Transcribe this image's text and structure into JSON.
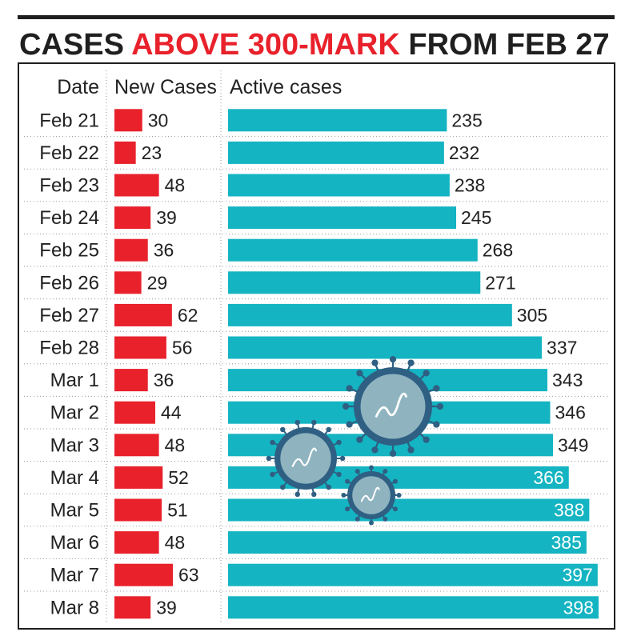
{
  "title": {
    "part1": "CASES ",
    "part2": "ABOVE 300-MARK",
    "part3": " FROM FEB 27"
  },
  "colors": {
    "title_dark": "#1f1f1f",
    "title_accent": "#e8212b",
    "new_cases_bar": "#e8212b",
    "active_cases_bar": "#14b4c2",
    "virus_body": "#8fb4c0",
    "virus_ring": "#2f5f82"
  },
  "chart_data": {
    "type": "table",
    "columns": [
      "Date",
      "New Cases",
      "Active cases"
    ],
    "categories": [
      "Feb 21",
      "Feb 22",
      "Feb 23",
      "Feb 24",
      "Feb 25",
      "Feb 26",
      "Feb 27",
      "Feb 28",
      "Mar 1",
      "Mar 2",
      "Mar 3",
      "Mar 4",
      "Mar 5",
      "Mar 6",
      "Mar 7",
      "Mar 8"
    ],
    "series": [
      {
        "name": "New Cases",
        "chart": "bar",
        "values": [
          30,
          23,
          48,
          39,
          36,
          29,
          62,
          56,
          36,
          44,
          48,
          52,
          51,
          48,
          63,
          39
        ]
      },
      {
        "name": "Active cases",
        "chart": "bar",
        "values": [
          235,
          232,
          238,
          245,
          268,
          271,
          305,
          337,
          343,
          346,
          349,
          366,
          388,
          385,
          397,
          398
        ]
      }
    ]
  },
  "decoration": {
    "icon": "coronavirus-icon"
  }
}
